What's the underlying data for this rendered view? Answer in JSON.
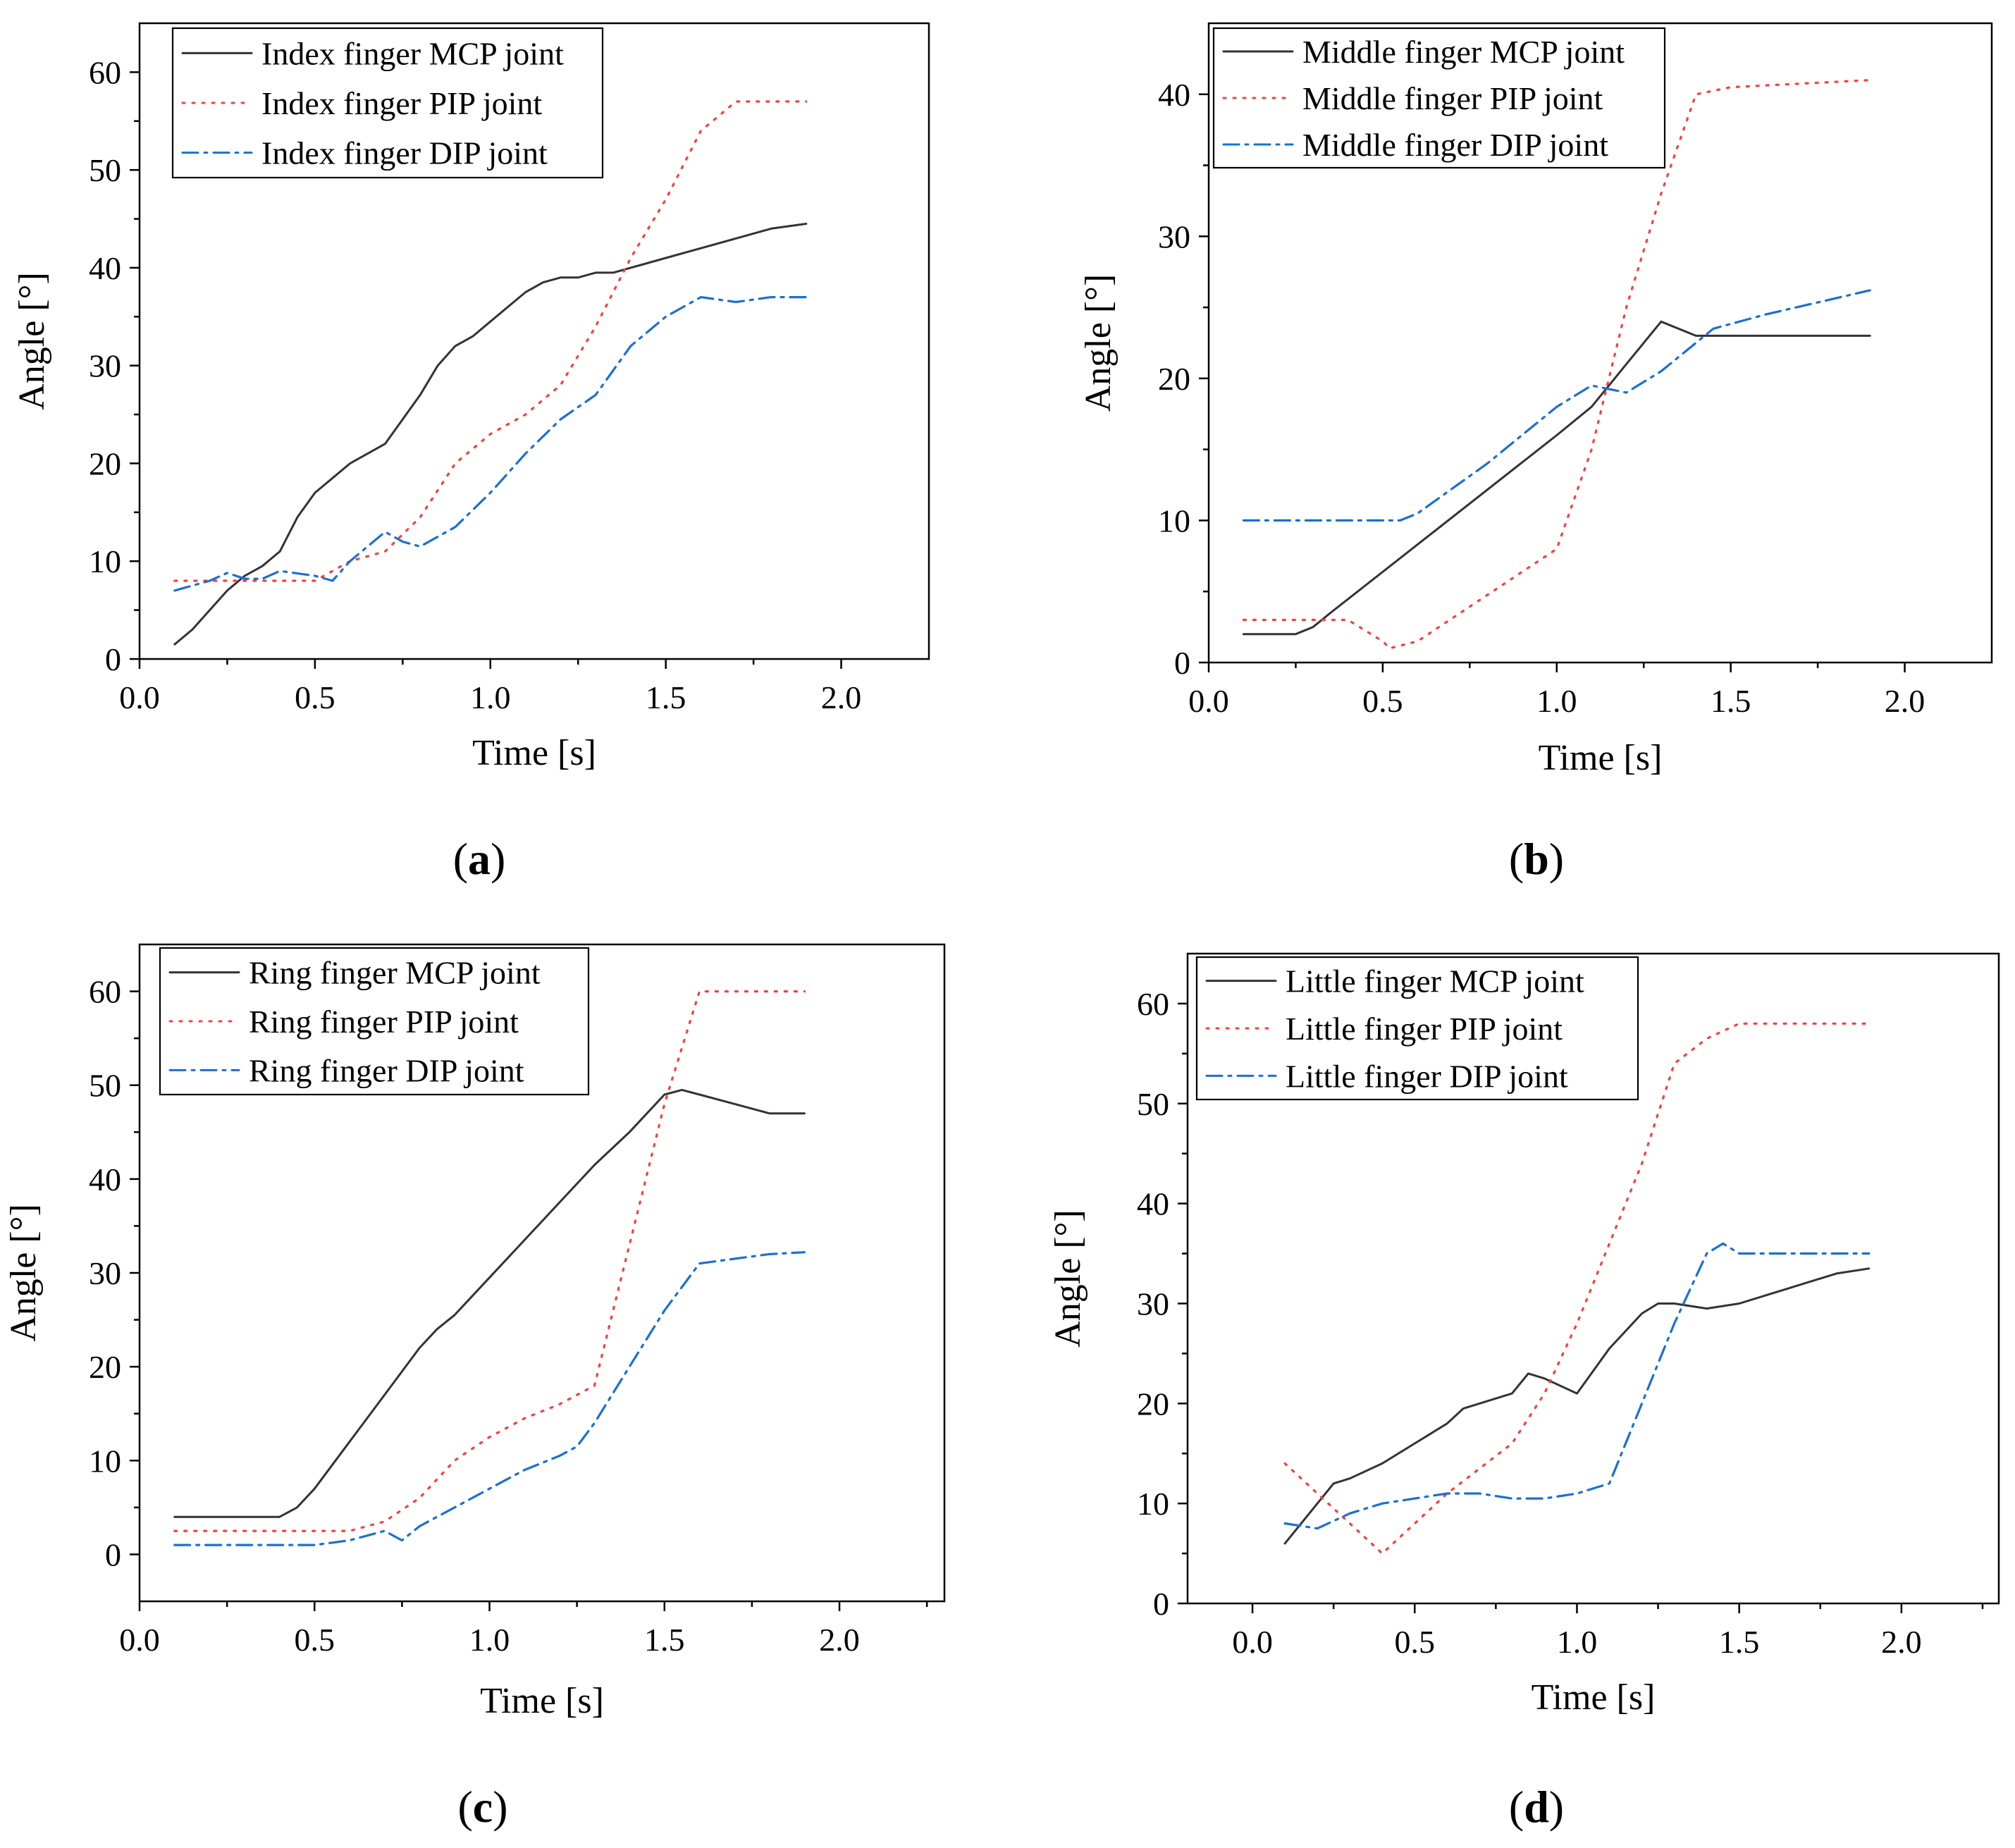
{
  "colors": {
    "mcp": "#333333",
    "pip": "#ff3b3b",
    "dip": "#1a6fd6"
  },
  "chart_data": [
    {
      "type": "line",
      "panel": "a",
      "xlabel": "Time [s]",
      "ylabel": "Angle [°]",
      "xlim": [
        0.0,
        2.25
      ],
      "ylim": [
        0,
        65
      ],
      "xticks": [
        0.0,
        0.5,
        1.0,
        1.5,
        2.0
      ],
      "xtick_labels": [
        "0.0",
        "0.5",
        "1.0",
        "1.5",
        "2.0"
      ],
      "yticks": [
        0,
        10,
        20,
        30,
        40,
        50,
        60
      ],
      "ytick_labels": [
        "0",
        "10",
        "20",
        "30",
        "40",
        "50",
        "60"
      ],
      "legend": "top-left",
      "series": [
        {
          "name": "Index finger MCP joint",
          "style": "solid",
          "color": "#333333",
          "x": [
            0.1,
            0.15,
            0.2,
            0.25,
            0.3,
            0.35,
            0.4,
            0.45,
            0.5,
            0.55,
            0.6,
            0.65,
            0.7,
            0.75,
            0.8,
            0.85,
            0.9,
            0.95,
            1.0,
            1.05,
            1.1,
            1.15,
            1.2,
            1.25,
            1.3,
            1.35,
            1.4,
            1.45,
            1.5,
            1.6,
            1.7,
            1.8,
            1.9
          ],
          "y": [
            1.5,
            3,
            5,
            7,
            8.5,
            9.5,
            11,
            14.5,
            17,
            18.5,
            20,
            21,
            22,
            24.5,
            27,
            30,
            32,
            33,
            34.5,
            36,
            37.5,
            38.5,
            39,
            39,
            39.5,
            39.5,
            40,
            40.5,
            41,
            42,
            43,
            44,
            44.5
          ]
        },
        {
          "name": "Index finger PIP joint",
          "style": "dotted",
          "color": "#ff3b3b",
          "x": [
            0.1,
            0.2,
            0.3,
            0.4,
            0.5,
            0.6,
            0.7,
            0.8,
            0.9,
            1.0,
            1.1,
            1.2,
            1.3,
            1.4,
            1.5,
            1.6,
            1.7,
            1.75,
            1.8,
            1.9
          ],
          "y": [
            8,
            8,
            8,
            8,
            8,
            10,
            11,
            14.5,
            20,
            23,
            25,
            28,
            34,
            41,
            47,
            54,
            57,
            57,
            57,
            57
          ]
        },
        {
          "name": "Index finger DIP joint",
          "style": "dashdot",
          "color": "#1a6fd6",
          "x": [
            0.1,
            0.2,
            0.25,
            0.3,
            0.35,
            0.4,
            0.5,
            0.55,
            0.6,
            0.7,
            0.75,
            0.8,
            0.9,
            1.0,
            1.1,
            1.2,
            1.3,
            1.4,
            1.5,
            1.6,
            1.7,
            1.8,
            1.9
          ],
          "y": [
            7,
            8,
            8.8,
            8.2,
            8.2,
            9,
            8.5,
            8,
            10,
            13,
            12,
            11.5,
            13.5,
            17,
            21,
            24.5,
            27,
            32,
            35,
            37,
            36.5,
            37,
            37
          ]
        }
      ]
    },
    {
      "type": "line",
      "panel": "b",
      "xlabel": "Time [s]",
      "ylabel": "Angle [°]",
      "xlim": [
        0.0,
        2.25
      ],
      "ylim": [
        0,
        45
      ],
      "xticks": [
        0.0,
        0.5,
        1.0,
        1.5,
        2.0
      ],
      "xtick_labels": [
        "0.0",
        "0.5",
        "1.0",
        "1.5",
        "2.0"
      ],
      "yticks": [
        0,
        10,
        20,
        30,
        40
      ],
      "ytick_labels": [
        "0",
        "10",
        "20",
        "30",
        "40"
      ],
      "legend": "top-left",
      "series": [
        {
          "name": "Middle finger MCP joint",
          "style": "solid",
          "color": "#333333",
          "x": [
            0.1,
            0.25,
            0.3,
            0.35,
            1.0,
            1.1,
            1.2,
            1.3,
            1.4,
            1.5,
            1.9
          ],
          "y": [
            2,
            2,
            2.5,
            3.5,
            16,
            18,
            21,
            24,
            23,
            23,
            23
          ]
        },
        {
          "name": "Middle finger PIP joint",
          "style": "dotted",
          "color": "#ff3b3b",
          "x": [
            0.1,
            0.3,
            0.4,
            0.5,
            0.52,
            0.6,
            1.0,
            1.1,
            1.2,
            1.3,
            1.4,
            1.5,
            1.9
          ],
          "y": [
            3,
            3,
            3,
            1.5,
            1,
            1.5,
            8,
            15,
            25,
            33,
            40,
            40.5,
            41
          ]
        },
        {
          "name": "Middle finger DIP joint",
          "style": "dashdot",
          "color": "#1a6fd6",
          "x": [
            0.1,
            0.5,
            0.55,
            0.6,
            0.8,
            1.0,
            1.1,
            1.2,
            1.3,
            1.45,
            1.6,
            1.9
          ],
          "y": [
            10,
            10,
            10,
            10.5,
            14,
            18,
            19.5,
            19,
            20.5,
            23.5,
            24.5,
            26.2
          ]
        }
      ]
    },
    {
      "type": "line",
      "panel": "c",
      "xlabel": "Time [s]",
      "ylabel": "Angle [°]",
      "xlim": [
        0.0,
        2.3
      ],
      "ylim": [
        -5,
        65
      ],
      "xticks": [
        0.0,
        0.5,
        1.0,
        1.5,
        2.0
      ],
      "xtick_labels": [
        "0.0",
        "0.5",
        "1.0",
        "1.5",
        "2.0"
      ],
      "yticks": [
        0,
        10,
        20,
        30,
        40,
        50,
        60
      ],
      "ytick_labels": [
        "0",
        "10",
        "20",
        "30",
        "40",
        "50",
        "60"
      ],
      "legend": "top-left",
      "series": [
        {
          "name": "Ring finger MCP joint",
          "style": "solid",
          "color": "#333333",
          "x": [
            0.1,
            0.4,
            0.45,
            0.5,
            0.6,
            0.7,
            0.8,
            0.85,
            0.9,
            1.0,
            1.1,
            1.2,
            1.3,
            1.4,
            1.5,
            1.55,
            1.6,
            1.7,
            1.8,
            1.9
          ],
          "y": [
            4,
            4,
            5,
            7,
            12,
            17,
            22,
            24,
            25.5,
            29.5,
            33.5,
            37.5,
            41.5,
            45,
            49,
            49.5,
            49,
            48,
            47,
            47
          ]
        },
        {
          "name": "Ring finger PIP joint",
          "style": "dotted",
          "color": "#ff3b3b",
          "x": [
            0.1,
            0.6,
            0.7,
            0.8,
            0.9,
            1.0,
            1.1,
            1.2,
            1.3,
            1.4,
            1.5,
            1.6,
            1.7,
            1.8,
            1.9
          ],
          "y": [
            2.5,
            2.5,
            3.5,
            6,
            10,
            12.5,
            14.5,
            16,
            18,
            33,
            48,
            60,
            60,
            60,
            60
          ]
        },
        {
          "name": "Ring finger DIP joint",
          "style": "dashdot",
          "color": "#1a6fd6",
          "x": [
            0.1,
            0.5,
            0.6,
            0.7,
            0.75,
            0.8,
            0.9,
            1.0,
            1.1,
            1.2,
            1.25,
            1.3,
            1.4,
            1.5,
            1.6,
            1.7,
            1.8,
            1.9
          ],
          "y": [
            1,
            1,
            1.5,
            2.5,
            1.5,
            3,
            5,
            7,
            9,
            10.5,
            11.5,
            14,
            20,
            26,
            31,
            31.5,
            32,
            32.2
          ]
        }
      ]
    },
    {
      "type": "line",
      "panel": "d",
      "xlabel": "Time [s]",
      "ylabel": "Angle [°]",
      "xlim": [
        -0.2,
        2.3
      ],
      "ylim": [
        0,
        65
      ],
      "xticks": [
        0.0,
        0.5,
        1.0,
        1.5,
        2.0
      ],
      "xtick_labels": [
        "0.0",
        "0.5",
        "1.0",
        "1.5",
        "2.0"
      ],
      "yticks": [
        0,
        10,
        20,
        30,
        40,
        50,
        60
      ],
      "ytick_labels": [
        "0",
        "10",
        "20",
        "30",
        "40",
        "50",
        "60"
      ],
      "legend": "top-left",
      "series": [
        {
          "name": "Little finger MCP joint",
          "style": "solid",
          "color": "#333333",
          "x": [
            0.1,
            0.25,
            0.3,
            0.4,
            0.5,
            0.6,
            0.65,
            0.7,
            0.8,
            0.85,
            0.9,
            1.0,
            1.1,
            1.2,
            1.25,
            1.3,
            1.4,
            1.5,
            1.6,
            1.7,
            1.8,
            1.9
          ],
          "y": [
            6,
            12,
            12.5,
            14,
            16,
            18,
            19.5,
            20,
            21,
            23,
            22.5,
            21,
            25.5,
            29,
            30,
            30,
            29.5,
            30,
            31,
            32,
            33,
            33.5
          ]
        },
        {
          "name": "Little finger PIP joint",
          "style": "dotted",
          "color": "#ff3b3b",
          "x": [
            0.1,
            0.2,
            0.3,
            0.4,
            0.5,
            0.6,
            0.7,
            0.8,
            0.9,
            1.0,
            1.1,
            1.2,
            1.3,
            1.4,
            1.5,
            1.6,
            1.7,
            1.8,
            1.9
          ],
          "y": [
            14,
            11,
            8,
            5,
            8,
            11,
            13.5,
            16,
            21,
            28,
            36,
            44,
            54,
            56.5,
            58,
            58,
            58,
            58,
            58
          ]
        },
        {
          "name": "Little finger DIP joint",
          "style": "dashdot",
          "color": "#1a6fd6",
          "x": [
            0.1,
            0.2,
            0.3,
            0.4,
            0.5,
            0.6,
            0.7,
            0.8,
            0.9,
            1.0,
            1.1,
            1.2,
            1.3,
            1.4,
            1.45,
            1.5,
            1.6,
            1.7,
            1.8,
            1.9
          ],
          "y": [
            8,
            7.5,
            9,
            10,
            10.5,
            11,
            11,
            10.5,
            10.5,
            11,
            12,
            20,
            28,
            35,
            36,
            35,
            35,
            35,
            35,
            35
          ]
        }
      ]
    }
  ],
  "panels": {
    "a": {
      "label_open": "(",
      "label_letter": "a",
      "label_close": ")"
    },
    "b": {
      "label_open": "(",
      "label_letter": "b",
      "label_close": ")"
    },
    "c": {
      "label_open": "(",
      "label_letter": "c",
      "label_close": ")"
    },
    "d": {
      "label_open": "(",
      "label_letter": "d",
      "label_close": ")"
    }
  }
}
